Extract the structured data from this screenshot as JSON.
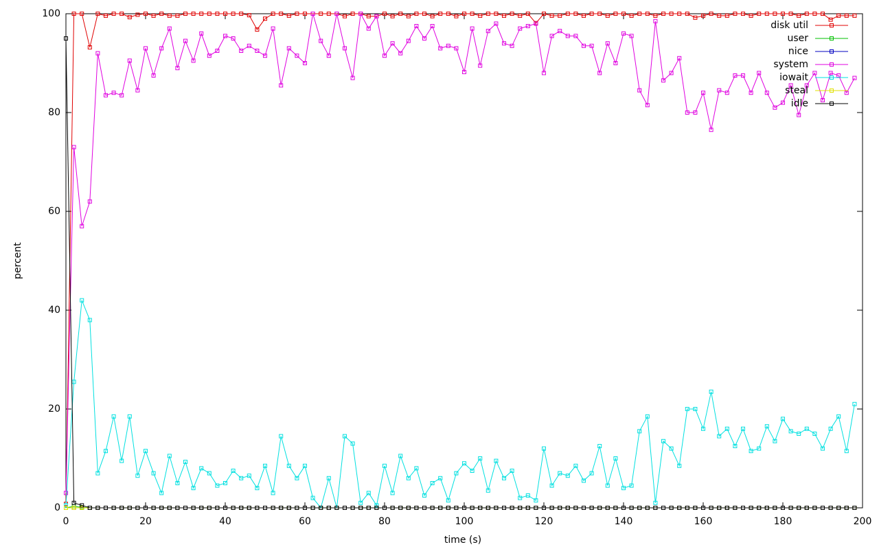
{
  "chart_data": {
    "type": "line",
    "x_label": "time (s)",
    "y_label": "percent",
    "xlim": [
      0,
      200
    ],
    "ylim": [
      0,
      100
    ],
    "xticks": [
      0,
      20,
      40,
      60,
      80,
      100,
      120,
      140,
      160,
      180,
      200
    ],
    "yticks": [
      0,
      20,
      40,
      60,
      80,
      100
    ],
    "legend": "top-right",
    "x": [
      0,
      2,
      4,
      6,
      8,
      10,
      12,
      14,
      16,
      18,
      20,
      22,
      24,
      26,
      28,
      30,
      32,
      34,
      36,
      38,
      40,
      42,
      44,
      46,
      48,
      50,
      52,
      54,
      56,
      58,
      60,
      62,
      64,
      66,
      68,
      70,
      72,
      74,
      76,
      78,
      80,
      82,
      84,
      86,
      88,
      90,
      92,
      94,
      96,
      98,
      100,
      102,
      104,
      106,
      108,
      110,
      112,
      114,
      116,
      118,
      120,
      122,
      124,
      126,
      128,
      130,
      132,
      134,
      136,
      138,
      140,
      142,
      144,
      146,
      148,
      150,
      152,
      154,
      156,
      158,
      160,
      162,
      164,
      166,
      168,
      170,
      172,
      174,
      176,
      178,
      180,
      182,
      184,
      186,
      188,
      190,
      192,
      194,
      196,
      198
    ],
    "series": [
      {
        "name": "disk util",
        "color": "#e00000",
        "values": [
          0.8,
          100,
          100,
          93.2,
          100,
          99.6,
          100,
          100,
          99.3,
          99.8,
          100,
          99.6,
          100,
          99.6,
          99.6,
          100,
          100,
          100,
          100,
          100,
          100,
          100,
          100,
          99.7,
          96.8,
          99,
          100,
          100,
          99.6,
          100,
          100,
          100,
          100,
          100,
          100,
          99.5,
          100,
          100,
          99.5,
          99.5,
          100,
          99.5,
          100,
          99.5,
          100,
          100,
          99.5,
          100,
          100,
          99.5,
          100,
          100,
          99.6,
          100,
          100,
          99.6,
          100,
          99.6,
          100,
          98.1,
          100,
          99.6,
          99.6,
          100,
          100,
          99.6,
          100,
          100,
          99.6,
          100,
          100,
          99.6,
          100,
          100,
          99.6,
          100,
          100,
          100,
          100,
          99.2,
          99.6,
          100,
          99.6,
          99.6,
          100,
          100,
          99.6,
          100,
          100,
          100,
          100,
          100,
          99.6,
          100,
          100,
          100,
          98.8,
          99.6,
          99.6,
          99.6
        ]
      },
      {
        "name": "user",
        "color": "#00c000",
        "values": [
          0,
          0.3,
          0.1,
          0,
          0,
          0,
          0,
          0,
          0,
          0,
          0,
          0,
          0,
          0,
          0,
          0,
          0,
          0,
          0,
          0,
          0,
          0,
          0,
          0,
          0,
          0,
          0,
          0,
          0,
          0,
          0,
          0,
          0,
          0,
          0,
          0,
          0,
          0,
          0,
          0,
          0,
          0,
          0,
          0,
          0,
          0,
          0,
          0,
          0,
          0,
          0,
          0,
          0,
          0,
          0,
          0,
          0,
          0,
          0,
          0,
          0,
          0,
          0,
          0,
          0,
          0,
          0,
          0,
          0,
          0,
          0,
          0,
          0,
          0,
          0,
          0,
          0,
          0,
          0,
          0,
          0,
          0,
          0,
          0,
          0,
          0,
          0,
          0,
          0,
          0,
          0,
          0,
          0,
          0,
          0,
          0,
          0,
          0,
          0,
          0
        ]
      },
      {
        "name": "nice",
        "color": "#0000c0",
        "values": [
          0,
          0,
          0,
          0,
          0,
          0,
          0,
          0,
          0,
          0,
          0,
          0,
          0,
          0,
          0,
          0,
          0,
          0,
          0,
          0,
          0,
          0,
          0,
          0,
          0,
          0,
          0,
          0,
          0,
          0,
          0,
          0,
          0,
          0,
          0,
          0,
          0,
          0,
          0,
          0,
          0,
          0,
          0,
          0,
          0,
          0,
          0,
          0,
          0,
          0,
          0,
          0,
          0,
          0,
          0,
          0,
          0,
          0,
          0,
          0,
          0,
          0,
          0,
          0,
          0,
          0,
          0,
          0,
          0,
          0,
          0,
          0,
          0,
          0,
          0,
          0,
          0,
          0,
          0,
          0,
          0,
          0,
          0,
          0,
          0,
          0,
          0,
          0,
          0,
          0,
          0,
          0,
          0,
          0,
          0,
          0,
          0,
          0,
          0,
          0
        ]
      },
      {
        "name": "system",
        "color": "#e000e0",
        "values": [
          3,
          73,
          57,
          62,
          92,
          83.5,
          84,
          83.5,
          90.5,
          84.5,
          93,
          87.5,
          93,
          97,
          89,
          94.5,
          90.5,
          96,
          91.5,
          92.5,
          95.5,
          95,
          92.5,
          93.5,
          92.5,
          91.5,
          97,
          85.5,
          93,
          91.5,
          90,
          100,
          94.5,
          91.5,
          100,
          93,
          87,
          100,
          97,
          99.5,
          91.5,
          94,
          92,
          94.5,
          97.5,
          95,
          97.5,
          93,
          93.5,
          93,
          88.2,
          97,
          89.5,
          96.5,
          98,
          94,
          93.5,
          97,
          97.5,
          98,
          88,
          95.5,
          96.5,
          95.5,
          95.5,
          93.5,
          93.5,
          88,
          94,
          90,
          96,
          95.5,
          84.5,
          81.5,
          98.5,
          86.5,
          88,
          91,
          80,
          80,
          84,
          76.5,
          84.5,
          84,
          87.5,
          87.5,
          84,
          88,
          84,
          81,
          82,
          85.5,
          79.5,
          85.5,
          88,
          82.5,
          88,
          87.5,
          84,
          87
        ]
      },
      {
        "name": "iowait",
        "color": "#00e0e0",
        "values": [
          0.5,
          25.5,
          42,
          38,
          7,
          11.5,
          18.5,
          9.5,
          18.5,
          6.5,
          11.5,
          7,
          3,
          10.5,
          5,
          9.3,
          4,
          8,
          7,
          4.5,
          5,
          7.5,
          6,
          6.5,
          4,
          8.5,
          3,
          14.5,
          8.5,
          6,
          8.5,
          2,
          0,
          6,
          0,
          14.5,
          13,
          1,
          3,
          0.5,
          8.5,
          3,
          10.5,
          6,
          8,
          2.5,
          5,
          6,
          1.5,
          7,
          9,
          7.5,
          10,
          3.5,
          9.5,
          6,
          7.5,
          2,
          2.5,
          1.5,
          12,
          4.5,
          7,
          6.5,
          8.5,
          5.5,
          7,
          12.5,
          4.5,
          10,
          4,
          4.5,
          15.5,
          18.5,
          1,
          13.5,
          12,
          8.5,
          20,
          20,
          16,
          23.5,
          14.5,
          16,
          12.5,
          16,
          11.5,
          12,
          16.5,
          13.5,
          18,
          15.5,
          15,
          16,
          15,
          12,
          16,
          18.5,
          11.5,
          21
        ]
      },
      {
        "name": "steal",
        "color": "#e0e000",
        "values": [
          0,
          0,
          0,
          0,
          0,
          0,
          0,
          0,
          0,
          0,
          0,
          0,
          0,
          0,
          0,
          0,
          0,
          0,
          0,
          0,
          0,
          0,
          0,
          0,
          0,
          0,
          0,
          0,
          0,
          0,
          0,
          0,
          0,
          0,
          0,
          0,
          0,
          0,
          0,
          0,
          0,
          0,
          0,
          0,
          0,
          0,
          0,
          0,
          0,
          0,
          0,
          0,
          0,
          0,
          0,
          0,
          0,
          0,
          0,
          0,
          0,
          0,
          0,
          0,
          0,
          0,
          0,
          0,
          0,
          0,
          0,
          0,
          0,
          0,
          0,
          0,
          0,
          0,
          0,
          0,
          0,
          0,
          0,
          0,
          0,
          0,
          0,
          0,
          0,
          0,
          0,
          0,
          0,
          0,
          0,
          0,
          0,
          0,
          0,
          0
        ]
      },
      {
        "name": "idle",
        "color": "#000000",
        "values": [
          95,
          1,
          0.5,
          0,
          0,
          0,
          0,
          0,
          0,
          0,
          0,
          0,
          0,
          0,
          0,
          0,
          0,
          0,
          0,
          0,
          0,
          0,
          0,
          0,
          0,
          0,
          0,
          0,
          0,
          0,
          0,
          0,
          0,
          0,
          0,
          0,
          0,
          0,
          0,
          0,
          0,
          0,
          0,
          0,
          0,
          0,
          0,
          0,
          0,
          0,
          0,
          0,
          0,
          0,
          0,
          0,
          0,
          0,
          0,
          0,
          0,
          0,
          0,
          0,
          0,
          0,
          0,
          0,
          0,
          0,
          0,
          0,
          0,
          0,
          0,
          0,
          0,
          0,
          0,
          0,
          0,
          0,
          0,
          0,
          0,
          0,
          0,
          0,
          0,
          0,
          0,
          0,
          0,
          0,
          0,
          0,
          0,
          0,
          0,
          0
        ]
      }
    ]
  }
}
